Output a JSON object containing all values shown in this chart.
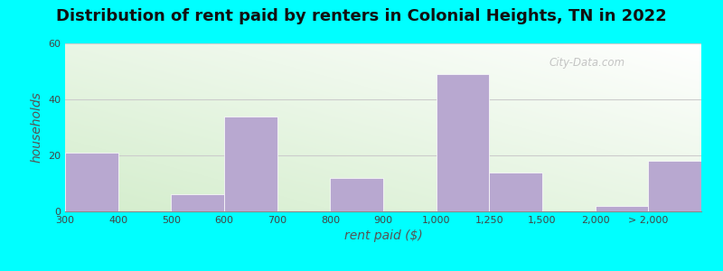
{
  "title": "Distribution of rent paid by renters in Colonial Heights, TN in 2022",
  "xlabel": "rent paid ($)",
  "ylabel": "households",
  "bar_color": "#b8a8d0",
  "background_outer": "#00FFFF",
  "ylim": [
    0,
    60
  ],
  "yticks": [
    0,
    20,
    40,
    60
  ],
  "bar_heights": [
    21,
    0,
    6,
    34,
    0,
    12,
    0,
    49,
    14,
    0,
    2,
    18
  ],
  "xtick_labels": [
    "300",
    "400",
    "500",
    "600",
    "700",
    "800",
    "900",
    "1,000",
    "1,250",
    "1,500",
    "2,000",
    "> 2,000"
  ],
  "watermark": "City-Data.com",
  "title_fontsize": 13,
  "axis_label_fontsize": 10,
  "tick_fontsize": 8,
  "grid_color": "#cccccc",
  "n_bars": 12,
  "bar_unit": 1,
  "xlim_left": 0,
  "xlim_right": 12
}
